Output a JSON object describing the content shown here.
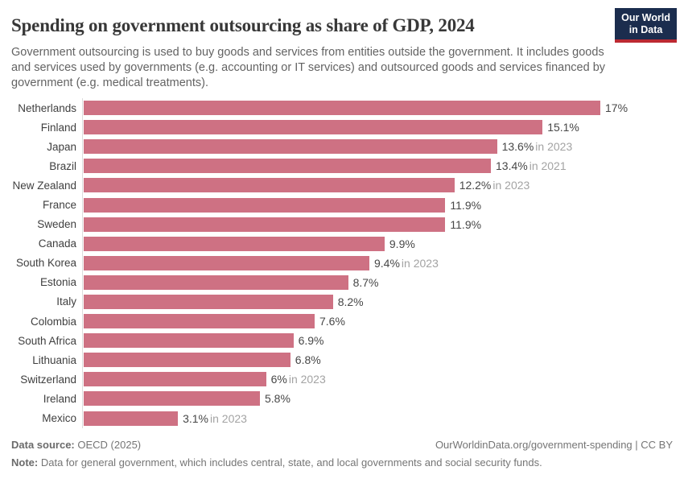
{
  "page": {
    "title": "Spending on government outsourcing as share of GDP, 2024",
    "subtitle": "Government outsourcing is used to buy goods and services from entities outside the government. It includes goods and services used by governments (e.g. accounting or IT services) and outsourced goods and services financed by government (e.g. medical treatments)."
  },
  "logo": {
    "line1": "Our World",
    "line2": "in Data",
    "bg_color": "#1b2d4e",
    "accent_color": "#bc2932"
  },
  "chart_data": {
    "type": "bar",
    "orientation": "horizontal",
    "title": "Spending on government outsourcing as share of GDP, 2024",
    "xlabel": "",
    "ylabel": "",
    "unit": "%",
    "xlim": [
      0,
      17
    ],
    "grid": false,
    "bar_color": "#ce7183",
    "categories": [
      "Netherlands",
      "Finland",
      "Japan",
      "Brazil",
      "New Zealand",
      "France",
      "Sweden",
      "Canada",
      "South Korea",
      "Estonia",
      "Italy",
      "Colombia",
      "South Africa",
      "Lithuania",
      "Switzerland",
      "Ireland",
      "Mexico"
    ],
    "values": [
      17,
      15.1,
      13.6,
      13.4,
      12.2,
      11.9,
      11.9,
      9.9,
      9.4,
      8.7,
      8.2,
      7.6,
      6.9,
      6.8,
      6,
      5.8,
      3.1
    ],
    "entries": [
      {
        "label": "Netherlands",
        "value": 17,
        "value_label": "17%",
        "year_note": ""
      },
      {
        "label": "Finland",
        "value": 15.1,
        "value_label": "15.1%",
        "year_note": ""
      },
      {
        "label": "Japan",
        "value": 13.6,
        "value_label": "13.6%",
        "year_note": "in 2023"
      },
      {
        "label": "Brazil",
        "value": 13.4,
        "value_label": "13.4%",
        "year_note": "in 2021"
      },
      {
        "label": "New Zealand",
        "value": 12.2,
        "value_label": "12.2%",
        "year_note": "in 2023"
      },
      {
        "label": "France",
        "value": 11.9,
        "value_label": "11.9%",
        "year_note": ""
      },
      {
        "label": "Sweden",
        "value": 11.9,
        "value_label": "11.9%",
        "year_note": ""
      },
      {
        "label": "Canada",
        "value": 9.9,
        "value_label": "9.9%",
        "year_note": ""
      },
      {
        "label": "South Korea",
        "value": 9.4,
        "value_label": "9.4%",
        "year_note": "in 2023"
      },
      {
        "label": "Estonia",
        "value": 8.7,
        "value_label": "8.7%",
        "year_note": ""
      },
      {
        "label": "Italy",
        "value": 8.2,
        "value_label": "8.2%",
        "year_note": ""
      },
      {
        "label": "Colombia",
        "value": 7.6,
        "value_label": "7.6%",
        "year_note": ""
      },
      {
        "label": "South Africa",
        "value": 6.9,
        "value_label": "6.9%",
        "year_note": ""
      },
      {
        "label": "Lithuania",
        "value": 6.8,
        "value_label": "6.8%",
        "year_note": ""
      },
      {
        "label": "Switzerland",
        "value": 6,
        "value_label": "6%",
        "year_note": "in 2023"
      },
      {
        "label": "Ireland",
        "value": 5.8,
        "value_label": "5.8%",
        "year_note": ""
      },
      {
        "label": "Mexico",
        "value": 3.1,
        "value_label": "3.1%",
        "year_note": "in 2023"
      }
    ]
  },
  "footer": {
    "source_label": "Data source:",
    "source": "OECD (2025)",
    "link": "OurWorldinData.org/government-spending | CC BY",
    "note_label": "Note:",
    "note": "Data for general government, which includes central, state, and local governments and social security funds."
  }
}
